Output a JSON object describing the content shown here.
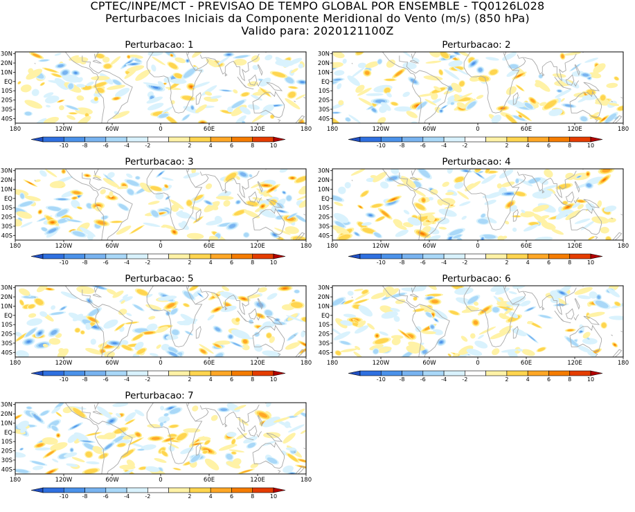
{
  "title": {
    "line1": "CPTEC/INPE/MCT - PREVISAO DE TEMPO GLOBAL POR ENSEMBLE - TQ0126L028",
    "line2": "Perturbacoes Iniciais da Componente Meridional do Vento (m/s) (850 hPa)",
    "line3": "Valido para: 2020121100Z"
  },
  "panels": [
    {
      "label": "Perturbacao: 1"
    },
    {
      "label": "Perturbacao: 2"
    },
    {
      "label": "Perturbacao: 3"
    },
    {
      "label": "Perturbacao: 4"
    },
    {
      "label": "Perturbacao: 5"
    },
    {
      "label": "Perturbacao: 6"
    },
    {
      "label": "Perturbacao: 7"
    }
  ],
  "axes": {
    "lat_labels": [
      "30N",
      "20N",
      "10N",
      "EQ",
      "10S",
      "20S",
      "30S",
      "40S"
    ],
    "lon_labels": [
      "180",
      "120W",
      "60W",
      "0",
      "60E",
      "120E",
      "180"
    ]
  },
  "colorbar": {
    "labels": [
      "-10",
      "-8",
      "-6",
      "-4",
      "-2",
      "2",
      "4",
      "6",
      "8",
      "10"
    ],
    "colors": [
      "#1f4fc2",
      "#2f70e0",
      "#4b92ea",
      "#78b3f0",
      "#a9d8f8",
      "#d9f2fd",
      "#ffffff",
      "#fff2a6",
      "#ffd54f",
      "#ffa726",
      "#f57c00",
      "#e53d00",
      "#b30000"
    ]
  },
  "map_colors": {
    "coast": "#a8a8a8",
    "frame": "#000000"
  }
}
